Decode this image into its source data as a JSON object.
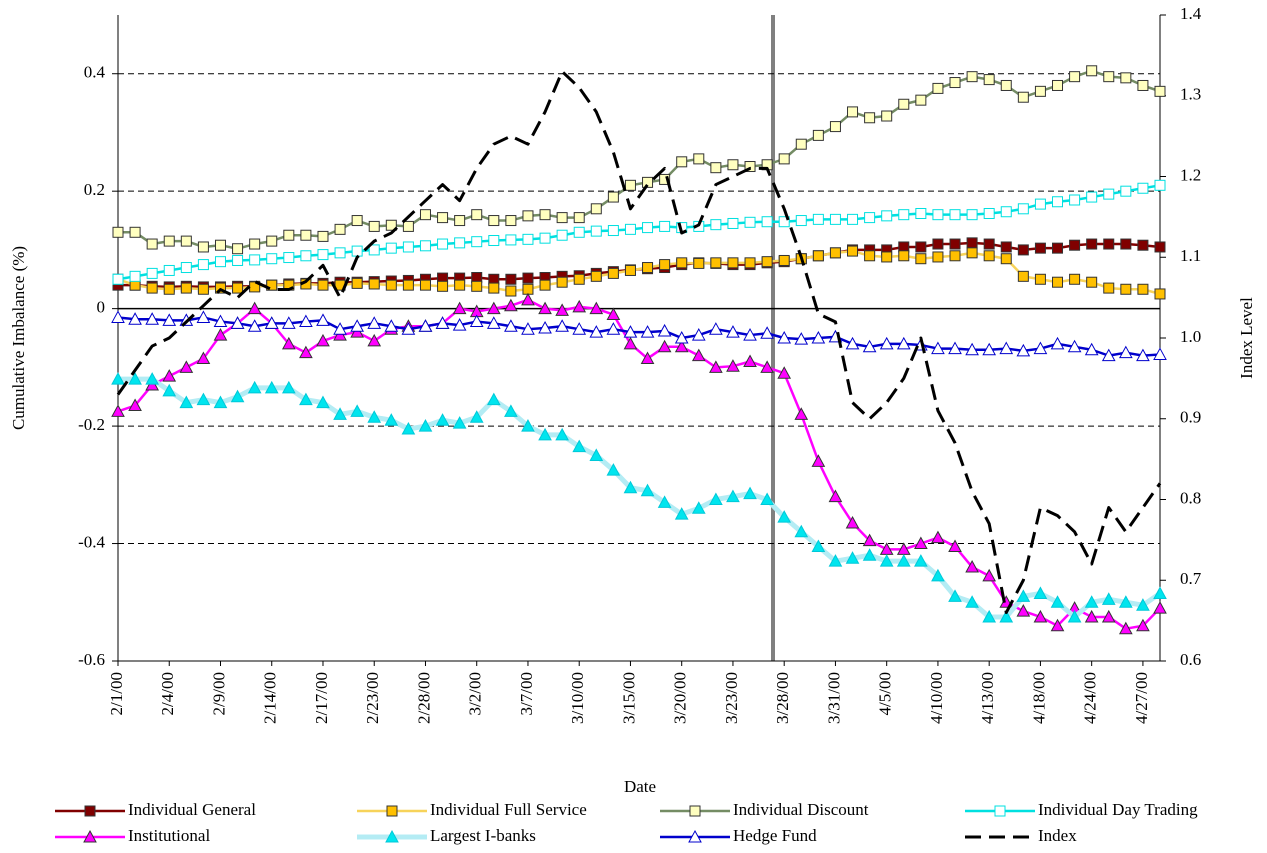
{
  "chart_data": {
    "type": "line",
    "x_label": "Date",
    "y_label": "Cumulative Imbalance (%)",
    "y2_label": "Index Level",
    "categories": [
      "2/1/00",
      null,
      null,
      "2/4/00",
      null,
      null,
      "2/9/00",
      null,
      null,
      "2/14/00",
      null,
      null,
      "2/17/00",
      null,
      null,
      "2/23/00",
      null,
      null,
      "2/28/00",
      null,
      null,
      "3/2/00",
      null,
      null,
      "3/7/00",
      null,
      null,
      "3/10/00",
      null,
      null,
      "3/15/00",
      null,
      null,
      "3/20/00",
      null,
      null,
      "3/23/00",
      null,
      null,
      "3/28/00",
      null,
      null,
      "3/31/00",
      null,
      null,
      "4/5/00",
      null,
      null,
      "4/10/00",
      null,
      null,
      "4/13/00",
      null,
      null,
      "4/18/00",
      null,
      null,
      "4/24/00",
      null,
      null,
      "4/27/00",
      null
    ],
    "ylim": [
      -0.6,
      0.5
    ],
    "yticks": [
      -0.6,
      -0.4,
      -0.2,
      0,
      0.2,
      0.4
    ],
    "y2lim": [
      0.6,
      1.4
    ],
    "y2ticks": [
      0.6,
      0.7,
      0.8,
      0.9,
      {
        "value": 1,
        "label": "1.0"
      },
      1.1,
      1.2,
      1.3,
      1.4
    ],
    "grid": true,
    "legend": "bottom",
    "series": [
      {
        "name": "Individual General",
        "color": "#800000",
        "marker": "square",
        "marker_fill": "#800000",
        "values": [
          0.04,
          0.04,
          0.038,
          0.037,
          0.038,
          0.037,
          0.037,
          0.038,
          0.038,
          0.04,
          0.042,
          0.043,
          0.043,
          0.045,
          0.045,
          0.046,
          0.047,
          0.048,
          0.05,
          0.052,
          0.052,
          0.053,
          0.05,
          0.05,
          0.052,
          0.053,
          0.055,
          0.056,
          0.06,
          0.063,
          0.066,
          0.068,
          0.07,
          0.075,
          0.078,
          0.077,
          0.075,
          0.075,
          0.078,
          0.08,
          0.085,
          0.09,
          0.095,
          0.1,
          0.1,
          0.1,
          0.105,
          0.105,
          0.11,
          0.11,
          0.112,
          0.11,
          0.105,
          0.1,
          0.103,
          0.103,
          0.108,
          0.11,
          0.11,
          0.11,
          0.108,
          0.105
        ]
      },
      {
        "name": "Individual Full Service",
        "color": "#f7d35a",
        "marker": "square",
        "marker_fill": "#ffc000",
        "values": [
          0.05,
          0.04,
          0.035,
          0.033,
          0.035,
          0.033,
          0.035,
          0.035,
          0.037,
          0.04,
          0.04,
          0.042,
          0.04,
          0.04,
          0.043,
          0.042,
          0.04,
          0.04,
          0.04,
          0.038,
          0.04,
          0.038,
          0.035,
          0.03,
          0.033,
          0.04,
          0.045,
          0.05,
          0.055,
          0.06,
          0.065,
          0.07,
          0.075,
          0.078,
          0.077,
          0.078,
          0.078,
          0.078,
          0.08,
          0.082,
          0.085,
          0.09,
          0.095,
          0.098,
          0.09,
          0.088,
          0.09,
          0.085,
          0.088,
          0.09,
          0.095,
          0.09,
          0.085,
          0.055,
          0.05,
          0.045,
          0.05,
          0.045,
          0.035,
          0.033,
          0.033,
          0.025
        ]
      },
      {
        "name": "Individual Discount",
        "color": "#748c64",
        "marker": "square",
        "marker_fill": "#ffffc0",
        "values": [
          0.13,
          0.13,
          0.11,
          0.115,
          0.115,
          0.105,
          0.108,
          0.102,
          0.11,
          0.115,
          0.125,
          0.125,
          0.123,
          0.135,
          0.15,
          0.14,
          0.142,
          0.14,
          0.16,
          0.155,
          0.15,
          0.16,
          0.15,
          0.15,
          0.158,
          0.16,
          0.155,
          0.155,
          0.17,
          0.19,
          0.21,
          0.215,
          0.22,
          0.25,
          0.255,
          0.24,
          0.245,
          0.242,
          0.245,
          0.255,
          0.28,
          0.295,
          0.31,
          0.335,
          0.325,
          0.328,
          0.348,
          0.355,
          0.375,
          0.385,
          0.395,
          0.39,
          0.38,
          0.36,
          0.37,
          0.38,
          0.395,
          0.405,
          0.395,
          0.393,
          0.38,
          0.37
        ]
      },
      {
        "name": "Individual Day Trading",
        "color": "#00e0e0",
        "marker": "square",
        "marker_fill": "#ffffff",
        "values": [
          0.05,
          0.055,
          0.06,
          0.065,
          0.07,
          0.075,
          0.08,
          0.082,
          0.083,
          0.085,
          0.087,
          0.09,
          0.092,
          0.095,
          0.098,
          0.1,
          0.103,
          0.105,
          0.107,
          0.11,
          0.112,
          0.114,
          0.116,
          0.117,
          0.118,
          0.12,
          0.125,
          0.13,
          0.132,
          0.133,
          0.135,
          0.138,
          0.14,
          0.138,
          0.14,
          0.143,
          0.145,
          0.147,
          0.148,
          0.148,
          0.15,
          0.152,
          0.152,
          0.152,
          0.155,
          0.158,
          0.16,
          0.162,
          0.16,
          0.16,
          0.16,
          0.162,
          0.165,
          0.17,
          0.178,
          0.182,
          0.185,
          0.19,
          0.195,
          0.2,
          0.205,
          0.21
        ]
      },
      {
        "name": "Institutional",
        "color": "#ff00ff",
        "marker": "triangle",
        "marker_fill": "#ff00ff",
        "values": [
          -0.175,
          -0.165,
          -0.13,
          -0.115,
          -0.1,
          -0.085,
          -0.045,
          -0.025,
          0,
          -0.025,
          -0.06,
          -0.075,
          -0.055,
          -0.045,
          -0.04,
          -0.055,
          -0.035,
          -0.03,
          -0.03,
          -0.025,
          0,
          -0.005,
          0,
          0.005,
          0.015,
          0,
          -0.003,
          0.003,
          0,
          -0.01,
          -0.06,
          -0.085,
          -0.065,
          -0.065,
          -0.08,
          -0.1,
          -0.098,
          -0.09,
          -0.1,
          -0.11,
          -0.18,
          -0.26,
          -0.32,
          -0.365,
          -0.395,
          -0.41,
          -0.41,
          -0.4,
          -0.39,
          -0.405,
          -0.44,
          -0.455,
          -0.5,
          -0.515,
          -0.525,
          -0.54,
          -0.51,
          -0.525,
          -0.525,
          -0.545,
          -0.54,
          -0.51
        ]
      },
      {
        "name": "Largest I-banks",
        "color": "#b4ecf4",
        "marker": "triangle",
        "marker_fill": "#00e5ee",
        "values": [
          -0.12,
          -0.12,
          -0.12,
          -0.14,
          -0.16,
          -0.155,
          -0.16,
          -0.15,
          -0.135,
          -0.135,
          -0.135,
          -0.155,
          -0.16,
          -0.18,
          -0.175,
          -0.185,
          -0.19,
          -0.205,
          -0.2,
          -0.19,
          -0.195,
          -0.185,
          -0.155,
          -0.175,
          -0.2,
          -0.215,
          -0.215,
          -0.235,
          -0.25,
          -0.275,
          -0.305,
          -0.31,
          -0.33,
          -0.35,
          -0.34,
          -0.325,
          -0.32,
          -0.315,
          -0.325,
          -0.355,
          -0.38,
          -0.405,
          -0.43,
          -0.425,
          -0.42,
          -0.43,
          -0.43,
          -0.43,
          -0.455,
          -0.49,
          -0.5,
          -0.525,
          -0.525,
          -0.49,
          -0.485,
          -0.5,
          -0.525,
          -0.5,
          -0.495,
          -0.5,
          -0.505,
          -0.485
        ]
      },
      {
        "name": "Hedge Fund",
        "color": "#0000cc",
        "marker": "triangle",
        "marker_fill": "#ffffff",
        "values": [
          -0.015,
          -0.018,
          -0.018,
          -0.02,
          -0.02,
          -0.015,
          -0.022,
          -0.025,
          -0.03,
          -0.025,
          -0.025,
          -0.022,
          -0.02,
          -0.035,
          -0.03,
          -0.025,
          -0.03,
          -0.035,
          -0.03,
          -0.025,
          -0.028,
          -0.022,
          -0.025,
          -0.03,
          -0.035,
          -0.033,
          -0.03,
          -0.035,
          -0.04,
          -0.035,
          -0.04,
          -0.04,
          -0.038,
          -0.05,
          -0.045,
          -0.035,
          -0.04,
          -0.045,
          -0.042,
          -0.05,
          -0.052,
          -0.05,
          -0.048,
          -0.06,
          -0.065,
          -0.06,
          -0.06,
          -0.062,
          -0.068,
          -0.068,
          -0.07,
          -0.07,
          -0.068,
          -0.072,
          -0.068,
          -0.06,
          -0.065,
          -0.07,
          -0.08,
          -0.075,
          -0.08,
          -0.078
        ]
      },
      {
        "name": "Index",
        "color": "#000000",
        "marker": "none",
        "dashed": true,
        "axis": "y2",
        "values": [
          0.93,
          0.96,
          0.99,
          1.0,
          1.02,
          1.04,
          1.06,
          1.05,
          1.07,
          1.06,
          1.06,
          1.07,
          1.09,
          1.05,
          1.1,
          1.12,
          1.13,
          1.15,
          1.17,
          1.19,
          1.17,
          1.21,
          1.24,
          1.25,
          1.24,
          1.28,
          1.33,
          1.31,
          1.28,
          1.23,
          1.16,
          1.19,
          1.21,
          1.13,
          1.14,
          1.19,
          1.2,
          1.21,
          1.21,
          1.16,
          1.1,
          1.03,
          1.02,
          0.92,
          0.9,
          0.92,
          0.95,
          1.0,
          0.91,
          0.87,
          0.81,
          0.77,
          0.66,
          0.7,
          0.79,
          0.78,
          0.76,
          0.72,
          0.79,
          0.76,
          0.79,
          0.82
        ]
      }
    ]
  }
}
